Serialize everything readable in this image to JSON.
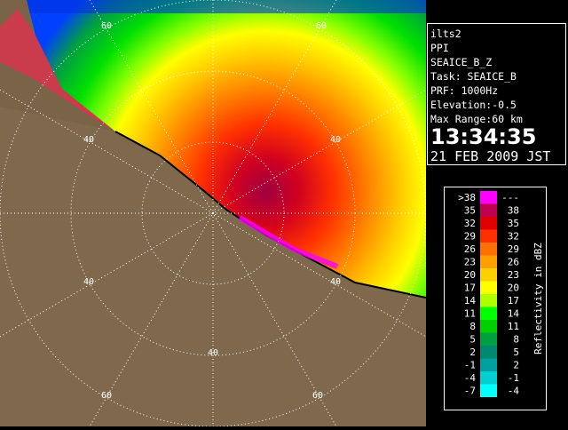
{
  "panel": {
    "lines": [
      "ilts2",
      "PPI",
      "SEAICE_B_Z",
      "Task: SEAICE_B",
      "PRF: 1000Hz",
      "Elevation:-0.5",
      "Max Range:60 km"
    ],
    "time": "13:34:35",
    "date": "21 FEB 2009 JST"
  },
  "range_labels": [
    "60",
    "60",
    "40",
    "40",
    "40",
    "40",
    "40",
    "60",
    "60"
  ],
  "legend": {
    "title": "Reflectivity in dBZ",
    "rows": [
      {
        "low": ">38",
        "high": "---",
        "color": "#ff00ff"
      },
      {
        "low": "35",
        "high": "38",
        "color": "#c00050"
      },
      {
        "low": "32",
        "high": "35",
        "color": "#e00000"
      },
      {
        "low": "29",
        "high": "32",
        "color": "#ff3000"
      },
      {
        "low": "26",
        "high": "29",
        "color": "#ff7000"
      },
      {
        "low": "23",
        "high": "26",
        "color": "#ffa000"
      },
      {
        "low": "20",
        "high": "23",
        "color": "#ffd000"
      },
      {
        "low": "17",
        "high": "20",
        "color": "#ffff00"
      },
      {
        "low": "14",
        "high": "17",
        "color": "#b0ff00"
      },
      {
        "low": "11",
        "high": "14",
        "color": "#00ff00"
      },
      {
        "low": "8",
        "high": "11",
        "color": "#00d000"
      },
      {
        "low": "5",
        "high": "8",
        "color": "#00a040"
      },
      {
        "low": "2",
        "high": "5",
        "color": "#008870"
      },
      {
        "low": "-1",
        "high": "2",
        "color": "#00a0a0"
      },
      {
        "low": "-4",
        "high": "-1",
        "color": "#00d0d0"
      },
      {
        "low": "-7",
        "high": "-4",
        "color": "#00ffff"
      }
    ]
  }
}
